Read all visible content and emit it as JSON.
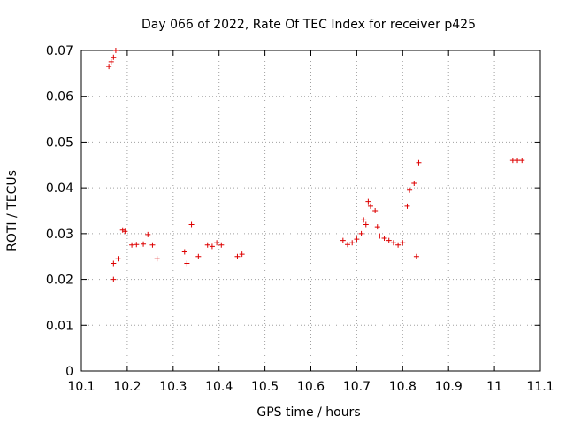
{
  "chart_data": {
    "type": "scatter",
    "title": "Day 066 of 2022, Rate Of TEC Index for receiver p425",
    "xlabel": "GPS time / hours",
    "ylabel": "ROTI / TECUs",
    "xlim": [
      10.1,
      11.1
    ],
    "ylim": [
      0,
      0.07
    ],
    "xticks": [
      "10.1",
      "10.2",
      "10.3",
      "10.4",
      "10.5",
      "10.6",
      "10.7",
      "10.8",
      "10.9",
      "11",
      "11.1"
    ],
    "yticks": [
      "0",
      "0.01",
      "0.02",
      "0.03",
      "0.04",
      "0.05",
      "0.06",
      "0.07"
    ],
    "grid": true,
    "marker": "+",
    "color": "#dd0000",
    "series": [
      {
        "points": [
          [
            10.16,
            0.0665
          ],
          [
            10.165,
            0.0675
          ],
          [
            10.17,
            0.0685
          ],
          [
            10.175,
            0.07
          ],
          [
            10.17,
            0.0235
          ],
          [
            10.18,
            0.0245
          ],
          [
            10.17,
            0.02
          ],
          [
            10.19,
            0.0308
          ],
          [
            10.195,
            0.0305
          ],
          [
            10.21,
            0.0275
          ],
          [
            10.22,
            0.0276
          ],
          [
            10.235,
            0.0277
          ],
          [
            10.245,
            0.0298
          ],
          [
            10.255,
            0.0275
          ],
          [
            10.265,
            0.0245
          ],
          [
            10.34,
            0.032
          ],
          [
            10.325,
            0.026
          ],
          [
            10.33,
            0.0235
          ],
          [
            10.355,
            0.025
          ],
          [
            10.375,
            0.0275
          ],
          [
            10.385,
            0.0272
          ],
          [
            10.395,
            0.028
          ],
          [
            10.405,
            0.0275
          ],
          [
            10.44,
            0.025
          ],
          [
            10.45,
            0.0255
          ],
          [
            10.67,
            0.0285
          ],
          [
            10.68,
            0.0276
          ],
          [
            10.69,
            0.028
          ],
          [
            10.7,
            0.0288
          ],
          [
            10.71,
            0.03
          ],
          [
            10.715,
            0.033
          ],
          [
            10.72,
            0.032
          ],
          [
            10.725,
            0.037
          ],
          [
            10.73,
            0.036
          ],
          [
            10.74,
            0.035
          ],
          [
            10.745,
            0.0315
          ],
          [
            10.75,
            0.0295
          ],
          [
            10.76,
            0.029
          ],
          [
            10.77,
            0.0285
          ],
          [
            10.78,
            0.028
          ],
          [
            10.79,
            0.0275
          ],
          [
            10.8,
            0.028
          ],
          [
            10.81,
            0.036
          ],
          [
            10.815,
            0.0395
          ],
          [
            10.825,
            0.041
          ],
          [
            10.835,
            0.0455
          ],
          [
            10.83,
            0.025
          ],
          [
            11.04,
            0.046
          ],
          [
            11.05,
            0.046
          ],
          [
            11.06,
            0.046
          ]
        ]
      }
    ]
  }
}
